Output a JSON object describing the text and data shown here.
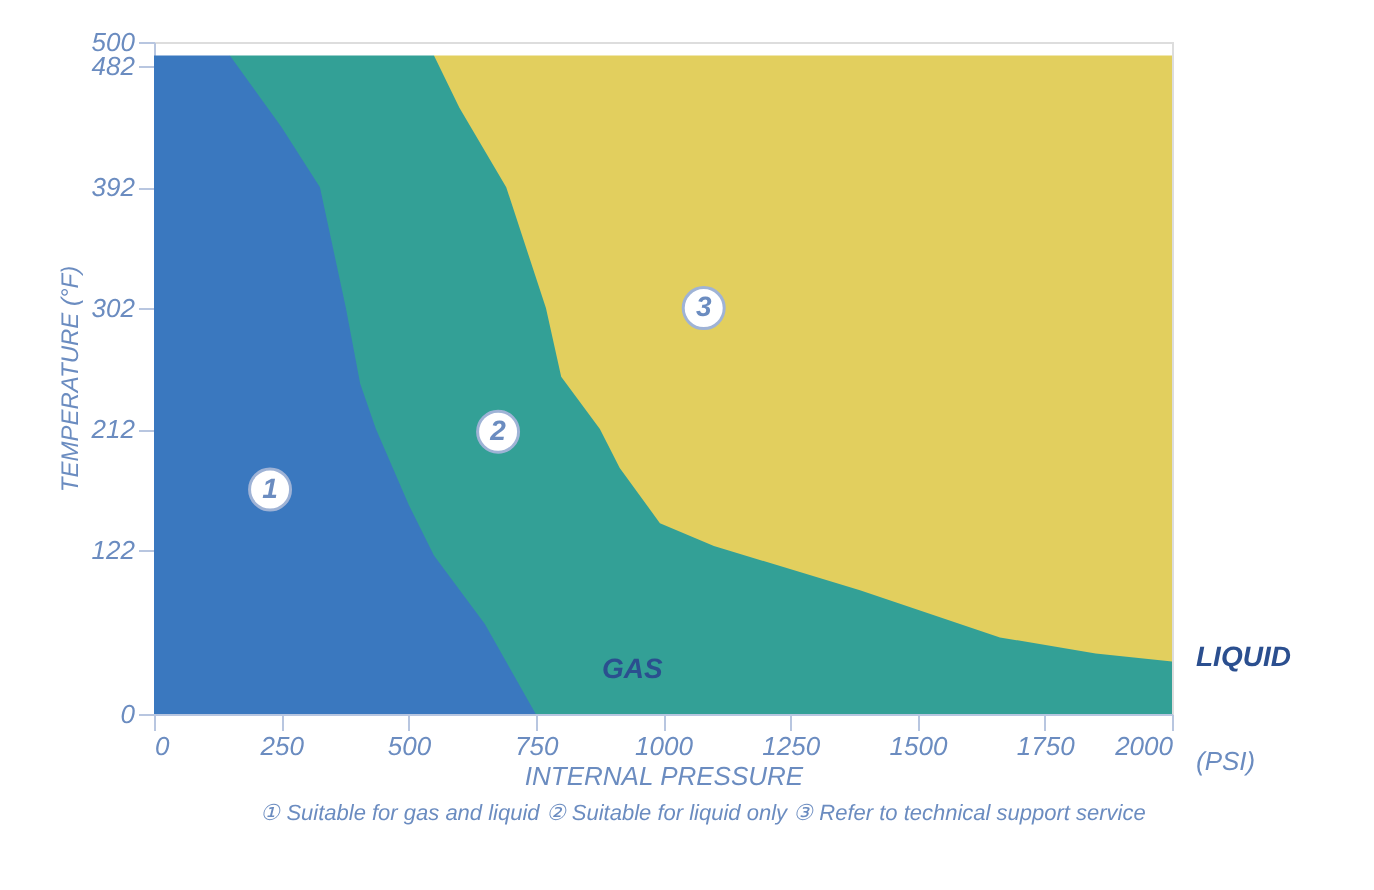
{
  "chart_data": {
    "type": "area",
    "xlabel": "INTERNAL PRESSURE",
    "ylabel": "TEMPERATURE (°F)",
    "xlim": [
      0,
      2000
    ],
    "xticks": [
      0,
      250,
      500,
      750,
      {
        "value": 1000,
        "label": "1000"
      },
      {
        "value": 1250,
        "label": "1250"
      },
      {
        "value": 1500,
        "label": "1500"
      },
      {
        "value": 1750,
        "label": "1750"
      },
      {
        "value": 2000,
        "label": "2000"
      }
    ],
    "ylim": [
      0,
      500
    ],
    "yticks": [
      0,
      122,
      212,
      302,
      392,
      482,
      500
    ],
    "grid": false,
    "legend": false,
    "series": [
      {
        "color": "#e2cf5e",
        "x": [
          550,
          2000
        ],
        "values": [
          490,
          490
        ]
      },
      {
        "color": "#33a096",
        "x": [
          149,
          550,
          600,
          692,
          770,
          800,
          876,
          915,
          994,
          1100,
          1387,
          1662,
          1850,
          2000
        ],
        "values": [
          490,
          490,
          451,
          392,
          302,
          251,
          212,
          183,
          142,
          125,
          92,
          57,
          45,
          39
        ]
      },
      {
        "color": "#3a78bf",
        "x": [
          0,
          149,
          250,
          326,
          377,
          405,
          436,
          500,
          550,
          650,
          750
        ],
        "values": [
          490,
          490,
          437,
          392,
          302,
          246,
          212,
          156,
          118,
          67,
          0
        ]
      }
    ],
    "annotations": [
      {
        "text": "1",
        "x": 228,
        "y": 167
      },
      {
        "text": "2",
        "x": 676,
        "y": 210
      },
      {
        "text": "3",
        "x": 1080,
        "y": 302
      },
      "GAS",
      "LIQUID",
      "(PSI)",
      "① Suitable for gas and liquid   ② Suitable for liquid only   ③ Refer to technical support service"
    ]
  }
}
